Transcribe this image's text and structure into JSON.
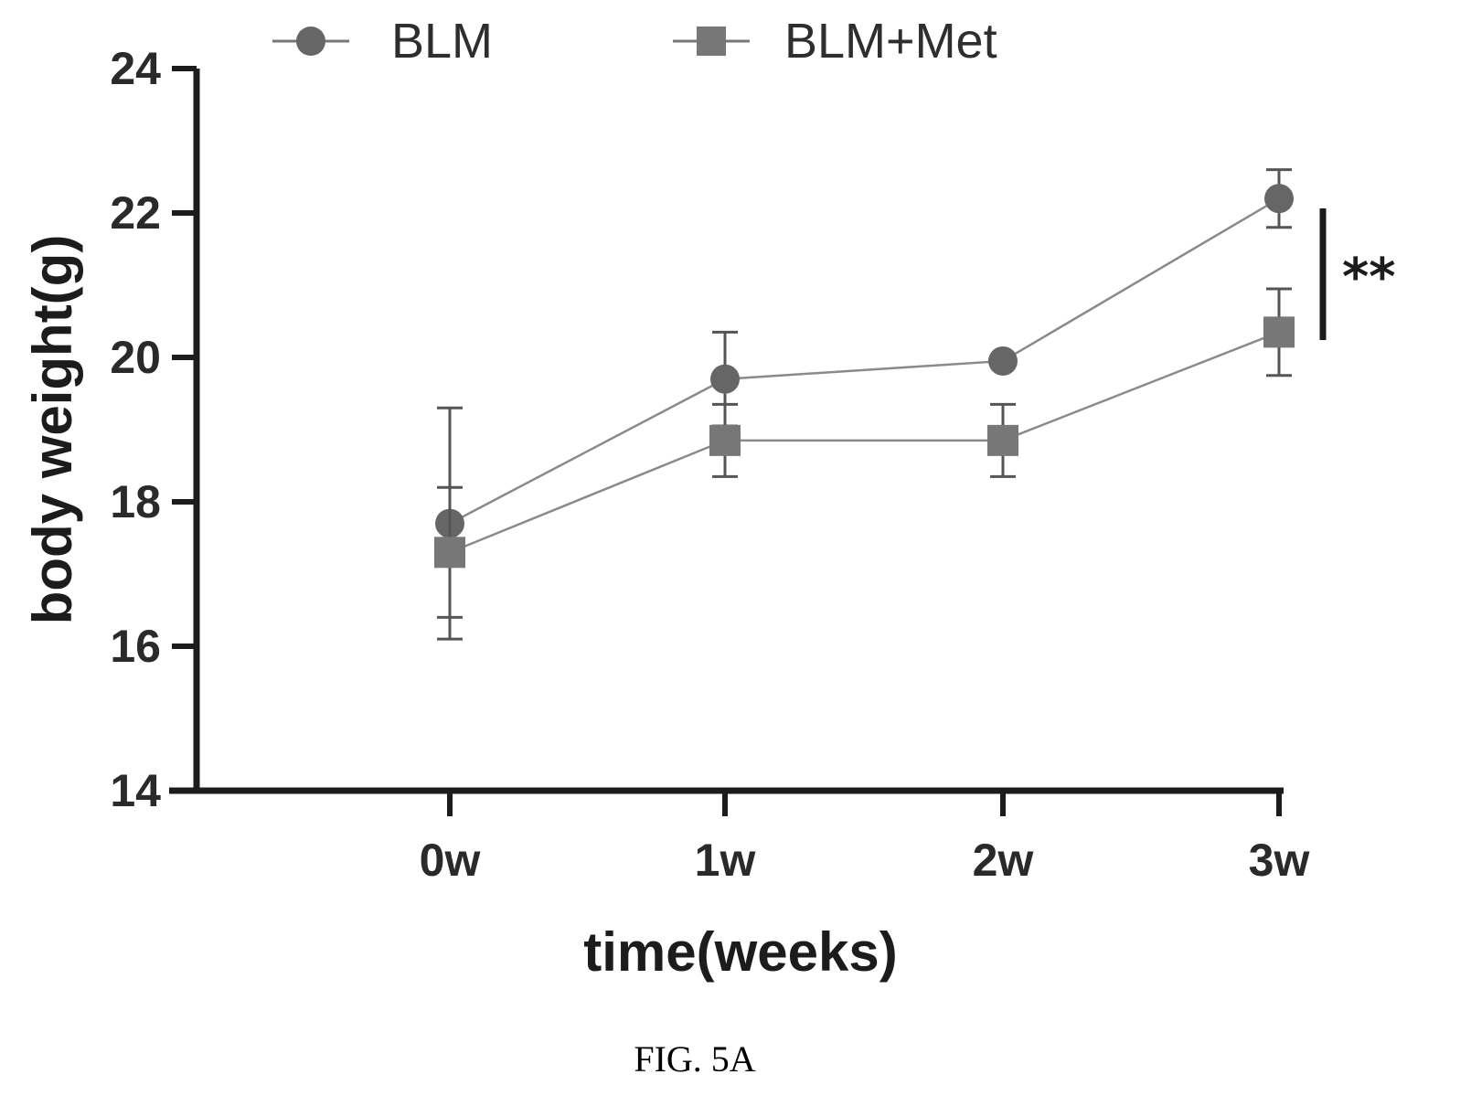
{
  "chart_data": {
    "type": "line",
    "categories": [
      "0w",
      "1w",
      "2w",
      "3w"
    ],
    "series": [
      {
        "name": "BLM",
        "marker": "circle",
        "values": [
          17.7,
          19.7,
          19.95,
          22.2
        ],
        "error": [
          1.6,
          0.65,
          0.0,
          0.4
        ]
      },
      {
        "name": "BLM+Met",
        "marker": "square",
        "values": [
          17.3,
          18.85,
          18.85,
          20.35
        ],
        "error": [
          0.9,
          0.5,
          0.5,
          0.6
        ]
      }
    ],
    "xlabel": "time(weeks)",
    "ylabel": "body weight(g)",
    "ylim": [
      14,
      24
    ],
    "yticks": [
      "14",
      "16",
      "18",
      "20",
      "22",
      "24"
    ],
    "grid": false,
    "legend_position": "top",
    "significance": {
      "label": "**",
      "between": [
        "BLM",
        "BLM+Met"
      ],
      "at": "3w"
    },
    "colors": {
      "BLM": "#666666",
      "BLM+Met": "#777777",
      "axis": "#1c1c1c"
    }
  },
  "caption": "FIG. 5A"
}
